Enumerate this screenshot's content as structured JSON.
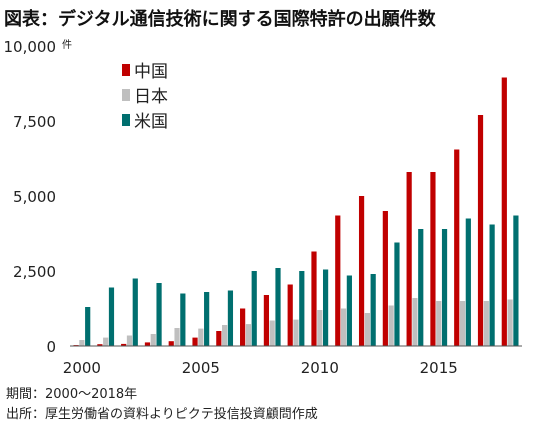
{
  "header": {
    "title": "図表：デジタル通信技術に関する国際特許の出願件数"
  },
  "footer": {
    "period": "期間：2000～2018年",
    "source": "出所：厚生労働省の資料よりピクテ投信投資顧問作成"
  },
  "chart_data": {
    "type": "bar",
    "title": "図表：デジタル通信技術に関する国際特許の出願件数",
    "xlabel": "",
    "ylabel": "",
    "y_unit": "件",
    "ylim": [
      0,
      10000
    ],
    "yticks": [
      0,
      2500,
      5000,
      7500,
      10000
    ],
    "ytick_labels": [
      "0",
      "2,500",
      "5,000",
      "7,500",
      "10,000"
    ],
    "xtick_labels": [
      "2000",
      "2005",
      "2010",
      "2015"
    ],
    "categories": [
      "2000",
      "2001",
      "2002",
      "2003",
      "2004",
      "2005",
      "2006",
      "2007",
      "2008",
      "2009",
      "2010",
      "2011",
      "2012",
      "2013",
      "2014",
      "2015",
      "2016",
      "2017",
      "2018"
    ],
    "series": [
      {
        "name": "中国",
        "color": "#c00000",
        "values": [
          30,
          60,
          70,
          120,
          160,
          280,
          500,
          1250,
          1700,
          2050,
          3150,
          4350,
          5000,
          4500,
          5800,
          5800,
          6550,
          7700,
          8950
        ]
      },
      {
        "name": "日本",
        "color": "#bfbfbf",
        "values": [
          200,
          280,
          350,
          400,
          600,
          580,
          700,
          730,
          850,
          880,
          1200,
          1250,
          1100,
          1350,
          1600,
          1500,
          1500,
          1500,
          1550
        ]
      },
      {
        "name": "米国",
        "color": "#006f6f",
        "values": [
          1300,
          1950,
          2250,
          2100,
          1750,
          1800,
          1850,
          2500,
          2600,
          2500,
          2550,
          2350,
          2400,
          3450,
          3900,
          3900,
          4250,
          4050,
          4350
        ]
      }
    ],
    "legend_position": "top-left",
    "grid": false
  }
}
